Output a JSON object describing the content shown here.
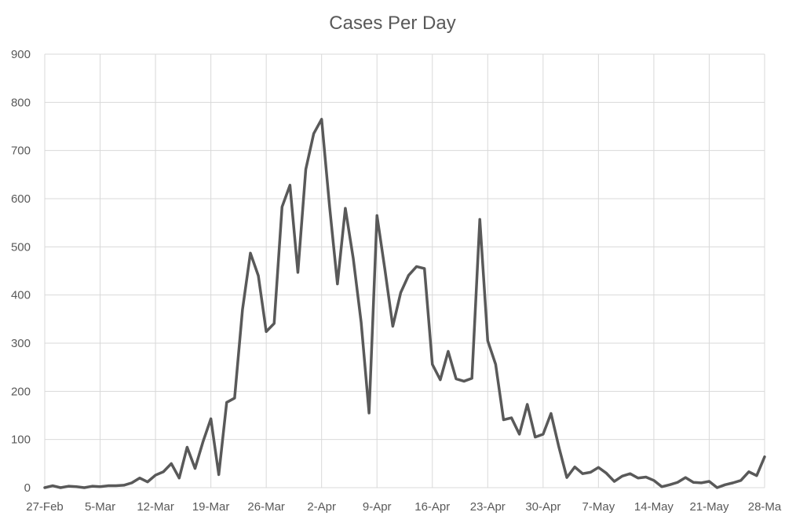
{
  "chart_data": {
    "type": "line",
    "title": "Cases Per Day",
    "xlabel": "",
    "ylabel": "",
    "ylim": [
      0,
      900
    ],
    "yticks": [
      0,
      100,
      200,
      300,
      400,
      500,
      600,
      700,
      800,
      900
    ],
    "xtick_labels": [
      "27-Feb",
      "5-Mar",
      "12-Mar",
      "19-Mar",
      "26-Mar",
      "2-Apr",
      "9-Apr",
      "16-Apr",
      "23-Apr",
      "30-Apr",
      "7-May",
      "14-May",
      "21-May",
      "28-Ma"
    ],
    "xtick_every_days": 7,
    "grid": true,
    "legend": "none",
    "series": [
      {
        "color": "#595959",
        "values": [
          0,
          4,
          0,
          3,
          2,
          0,
          3,
          2,
          4,
          4,
          5,
          10,
          20,
          12,
          26,
          33,
          50,
          20,
          84,
          40,
          95,
          143,
          27,
          177,
          186,
          370,
          487,
          440,
          324,
          341,
          583,
          628,
          447,
          661,
          735,
          765,
          585,
          423,
          580,
          476,
          343,
          155,
          565,
          453,
          335,
          405,
          441,
          459,
          455,
          256,
          224,
          283,
          226,
          221,
          227,
          557,
          305,
          256,
          141,
          145,
          111,
          173,
          105,
          111,
          154,
          84,
          21,
          43,
          29,
          32,
          42,
          30,
          13,
          24,
          29,
          20,
          22,
          15,
          2,
          6,
          11,
          21,
          11,
          10,
          13,
          0,
          6,
          10,
          15,
          33,
          25,
          64
        ]
      }
    ]
  }
}
